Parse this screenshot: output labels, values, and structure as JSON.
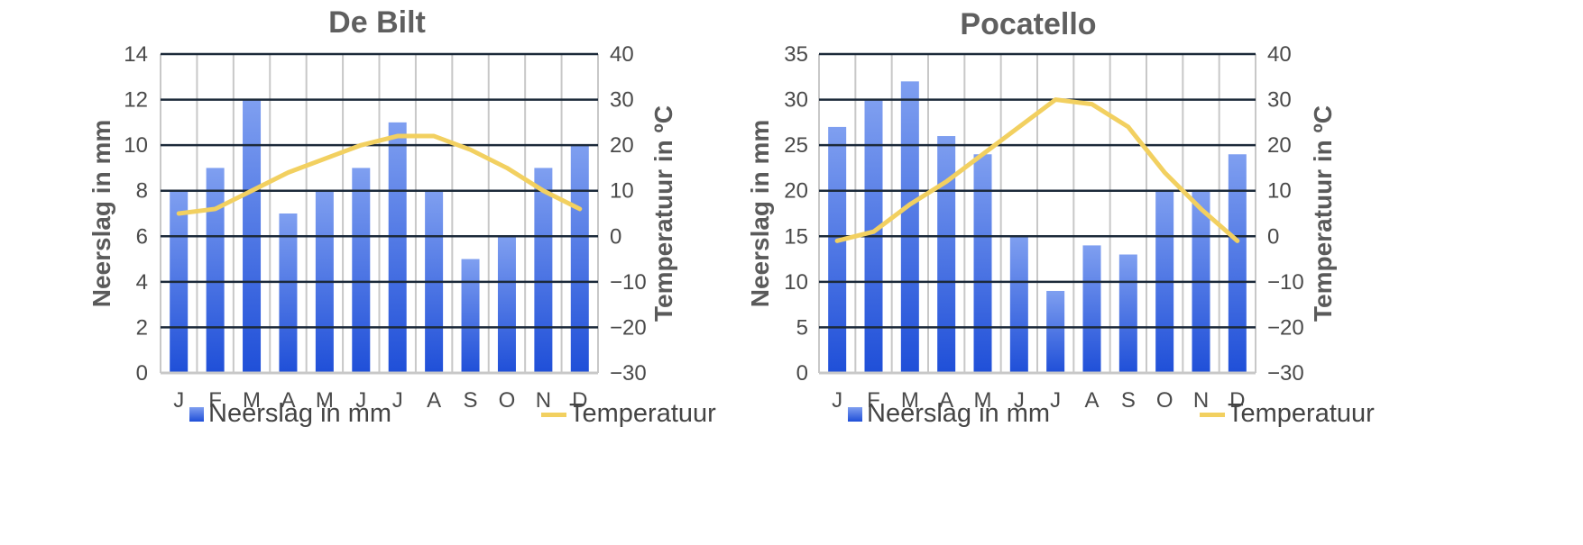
{
  "chart_data": [
    {
      "type": "bar",
      "title": "De Bilt",
      "categories": [
        "J",
        "F",
        "M",
        "A",
        "M",
        "J",
        "J",
        "A",
        "S",
        "O",
        "N",
        "D"
      ],
      "series": [
        {
          "name": "Neerslag in mm",
          "type": "bar",
          "axis": "left",
          "values": [
            8,
            9,
            12,
            7,
            8,
            9,
            11,
            8,
            5,
            6,
            9,
            10
          ]
        },
        {
          "name": "Temperatuur",
          "type": "line",
          "axis": "right",
          "values": [
            5,
            6,
            10,
            14,
            17,
            20,
            22,
            22,
            19,
            15,
            10,
            6
          ]
        }
      ],
      "ylabel": "Neerslag in mm",
      "ylim": [
        0,
        14
      ],
      "yticks": [
        0,
        2,
        4,
        6,
        8,
        10,
        12,
        14
      ],
      "y2label": "Temperatuur in ºC",
      "y2lim": [
        -30,
        40
      ],
      "y2ticks": [
        -30,
        -20,
        -10,
        0,
        10,
        20,
        30,
        40
      ],
      "grid": true,
      "legend": "bottom"
    },
    {
      "type": "bar",
      "title": "Pocatello",
      "categories": [
        "J",
        "F",
        "M",
        "A",
        "M",
        "J",
        "J",
        "A",
        "S",
        "O",
        "N",
        "D"
      ],
      "series": [
        {
          "name": "Neerslag in mm",
          "type": "bar",
          "axis": "left",
          "values": [
            27,
            30,
            32,
            26,
            24,
            15,
            9,
            14,
            13,
            20,
            20,
            24
          ]
        },
        {
          "name": "Temperatuur",
          "type": "line",
          "axis": "right",
          "values": [
            -1,
            1,
            7,
            12,
            18,
            24,
            30,
            29,
            24,
            14,
            6,
            -1
          ]
        }
      ],
      "ylabel": "Neerslag in mm",
      "ylim": [
        0,
        35
      ],
      "yticks": [
        0,
        5,
        10,
        15,
        20,
        25,
        30,
        35
      ],
      "y2label": "Temperatuur in ºC",
      "y2lim": [
        -30,
        40
      ],
      "y2ticks": [
        -30,
        -20,
        -10,
        0,
        10,
        20,
        30,
        40
      ],
      "grid": true,
      "legend": "bottom"
    }
  ],
  "colors": {
    "bar_top": "#7f9ff0",
    "bar_bottom": "#1f4fd8",
    "line": "#f2d060",
    "major_grid": "#1c2a3a",
    "minor_grid": "#c8c8c8"
  }
}
